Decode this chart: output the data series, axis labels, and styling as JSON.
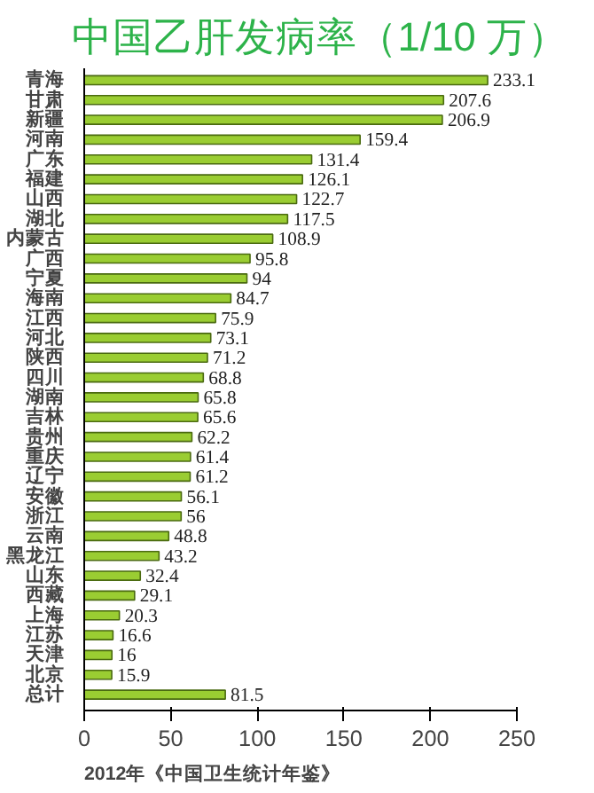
{
  "chart_data": {
    "type": "bar",
    "orientation": "horizontal",
    "title": "中国乙肝发病率（1/10 万）",
    "categories": [
      "青海",
      "甘肃",
      "新疆",
      "河南",
      "广东",
      "福建",
      "山西",
      "湖北",
      "内蒙古",
      "广西",
      "宁夏",
      "海南",
      "江西",
      "河北",
      "陕西",
      "四川",
      "湖南",
      "吉林",
      "贵州",
      "重庆",
      "辽宁",
      "安徽",
      "浙江",
      "云南",
      "黑龙江",
      "山东",
      "西藏",
      "上海",
      "江苏",
      "天津",
      "北京",
      "总计"
    ],
    "values": [
      233.1,
      207.6,
      206.9,
      159.4,
      131.4,
      126.1,
      122.7,
      117.5,
      108.9,
      95.8,
      94,
      84.7,
      75.9,
      73.1,
      71.2,
      68.8,
      65.8,
      65.6,
      62.2,
      61.4,
      61.2,
      56.1,
      56,
      48.8,
      43.2,
      32.4,
      29.1,
      20.3,
      16.6,
      16,
      15.9,
      81.5
    ],
    "color": "#9acd32",
    "xlim": [
      0,
      250
    ],
    "xticks": [
      0,
      50,
      100,
      150,
      200,
      250
    ],
    "grid": false,
    "data_labels": true,
    "annotations": [
      "2012年《中国卫生统计年鉴》"
    ]
  }
}
